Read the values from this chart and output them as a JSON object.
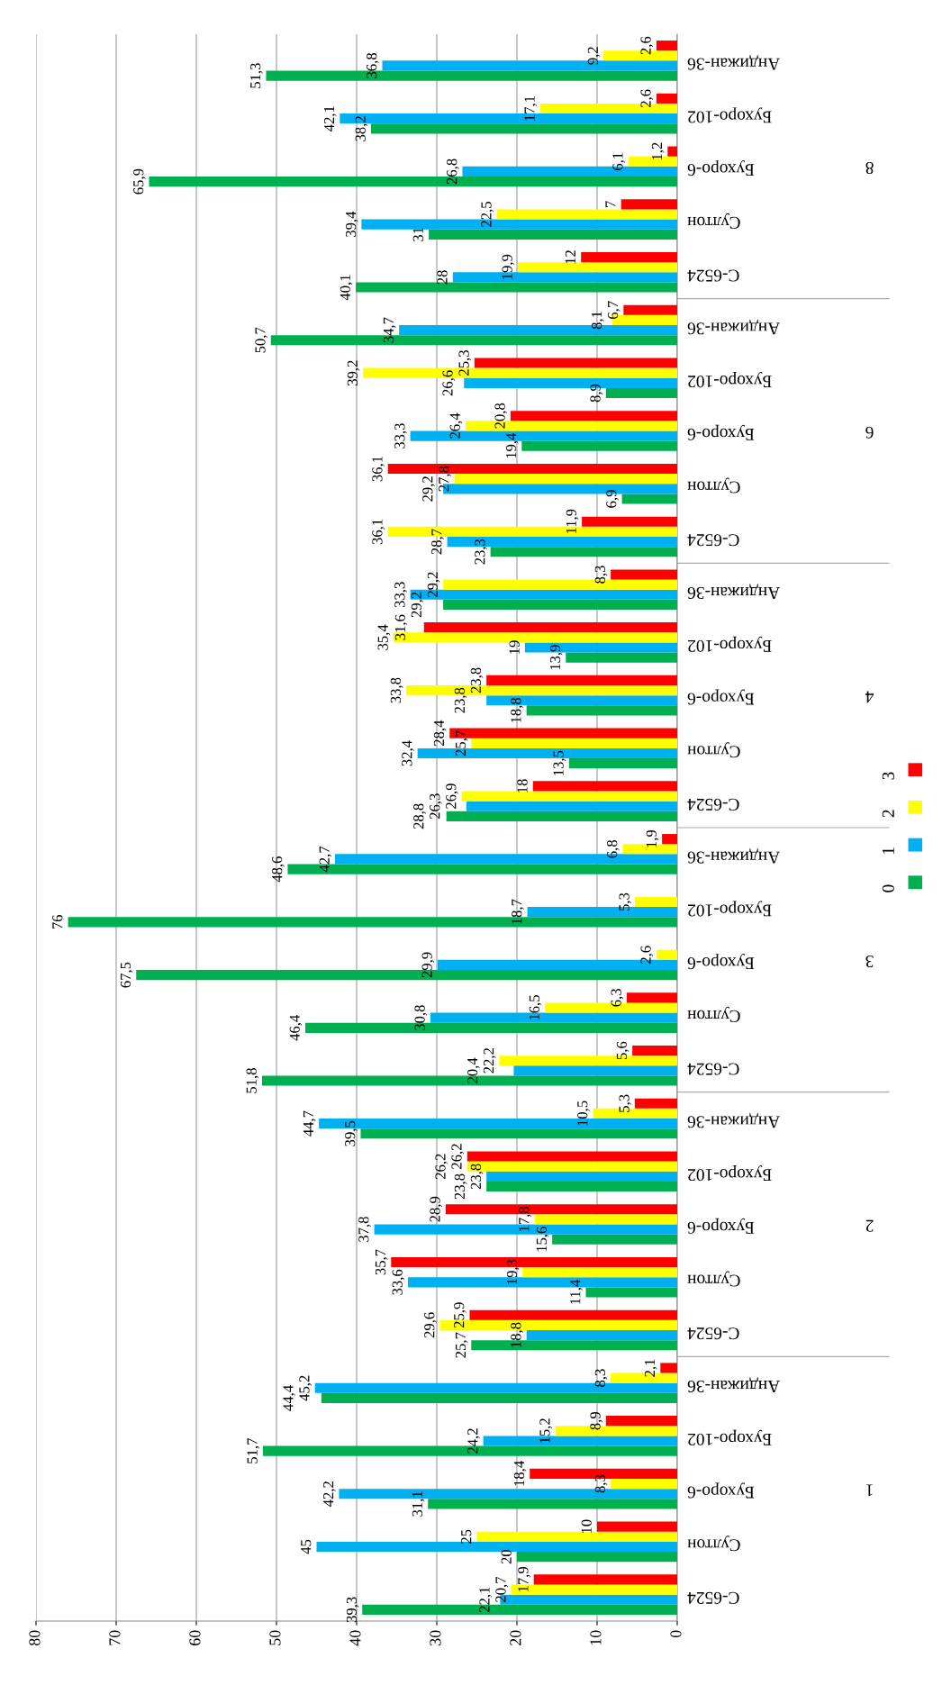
{
  "chart_data": {
    "type": "bar",
    "orientation": "horizontal",
    "categories": [
      "Андижан-36",
      "Бухоро-102",
      "Бухоро-6",
      "Султон",
      "С-6524",
      "Андижан-36",
      "Бухоро-102",
      "Бухоро-6",
      "Султон",
      "С-6524",
      "Андижан-36",
      "Бухоро-102",
      "Бухоро-6",
      "Султон",
      "С-6524",
      "Андижан-36",
      "Бухоро-102",
      "Бухоро-6",
      "Султон",
      "С-6524",
      "Андижан-36",
      "Бухоро-102",
      "Бухоро-6",
      "Султон",
      "С-6524",
      "Андижан-36",
      "Бухоро-102",
      "Бухоро-6",
      "Султон",
      "С-6524"
    ],
    "annotations": [
      "8",
      "6",
      "4",
      "3",
      "2",
      "1"
    ],
    "series": [
      {
        "name": "0",
        "color": "#00b050",
        "values": [
          51.3,
          38.2,
          65.9,
          31,
          40.1,
          50.7,
          8.9,
          19.4,
          6.9,
          23.3,
          29.2,
          13.9,
          18.8,
          13.5,
          28.8,
          48.6,
          76,
          67.5,
          46.4,
          51.8,
          39.5,
          23.8,
          15.6,
          11.4,
          25.7,
          44.4,
          51.7,
          31.1,
          20,
          39.3
        ],
        "value_labels": [
          "51,3",
          "38,2",
          "65,9",
          "31",
          "40,1",
          "50,7",
          "8,9",
          "19,4",
          "6,9",
          "23,3",
          "29,2",
          "13,9",
          "18,8",
          "13,5",
          "28,8",
          "48,6",
          "76",
          "67,5",
          "46,4",
          "51,8",
          "39,5",
          "23,8",
          "15,6",
          "11,4",
          "25,7",
          "44,4",
          "51,7",
          "31,1",
          "20",
          "39,3"
        ]
      },
      {
        "name": "1",
        "color": "#00b0f0",
        "values": [
          36.8,
          42.1,
          26.8,
          39.4,
          28,
          34.7,
          26.6,
          33.3,
          29.2,
          28.7,
          33.3,
          19,
          23.8,
          32.4,
          26.3,
          42.7,
          18.7,
          29.9,
          30.8,
          20.4,
          44.7,
          23.8,
          37.8,
          33.6,
          18.8,
          45.2,
          24.2,
          42.2,
          45,
          22.1
        ],
        "value_labels": [
          "36,8",
          "42,1",
          "26,8",
          "39,4",
          "28",
          "34,7",
          "26,6",
          "33,3",
          "29,2",
          "28,7",
          "33,3",
          "19",
          "23,8",
          "32,4",
          "26,3",
          "42,7",
          "18,7",
          "29,9",
          "30,8",
          "20,4",
          "44,7",
          "23,8",
          "37,8",
          "33,6",
          "18,8",
          "45,2",
          "24,2",
          "42,2",
          "45",
          "22,1"
        ]
      },
      {
        "name": "2",
        "color": "#ffff00",
        "values": [
          9.2,
          17.1,
          6.1,
          22.5,
          19.9,
          8.1,
          39.2,
          26.4,
          27.8,
          36.1,
          29.2,
          35.4,
          33.8,
          25.7,
          26.9,
          6.8,
          5.3,
          2.6,
          16.5,
          22.2,
          10.5,
          26.2,
          17.8,
          19.3,
          29.6,
          8.3,
          15.2,
          8.3,
          25,
          20.7
        ],
        "value_labels": [
          "9,2",
          "17,1",
          "6,1",
          "22,5",
          "19,9",
          "8,1",
          "39,2",
          "26,4",
          "27,8",
          "36,1",
          "29,2",
          "35,4",
          "33,8",
          "25,7",
          "26,9",
          "6,8",
          "5,3",
          "2,6",
          "16,5",
          "22,2",
          "10,5",
          "26,2",
          "17,8",
          "19,3",
          "29,6",
          "8,3",
          "15,2",
          "8,3",
          "25",
          "20,7"
        ]
      },
      {
        "name": "3",
        "color": "#ff0000",
        "values": [
          2.6,
          2.6,
          1.2,
          7,
          12,
          6.7,
          25.3,
          20.8,
          36.1,
          11.9,
          8.3,
          31.6,
          23.8,
          28.4,
          18,
          1.9,
          null,
          null,
          6.3,
          5.6,
          5.3,
          26.2,
          28.9,
          35.7,
          25.9,
          2.1,
          8.9,
          18.4,
          10,
          17.9
        ],
        "value_labels": [
          "2,6",
          "2,6",
          "1,2",
          "7",
          "12",
          "6,7",
          "25,3",
          "20,8",
          "36,1",
          "11,9",
          "8,3",
          "31,6",
          "23,8",
          "28,4",
          "18",
          "1,9",
          null,
          null,
          "6,3",
          "5,6",
          "5,3",
          "26,2",
          "28,9",
          "35,7",
          "25,9",
          "2,1",
          "8,9",
          "18,4",
          "10",
          "17,9"
        ]
      }
    ],
    "xlim": [
      80,
      0
    ],
    "xticks": [
      0,
      10,
      20,
      30,
      40,
      50,
      60,
      70,
      80
    ],
    "grid": "x",
    "legend": "right"
  }
}
